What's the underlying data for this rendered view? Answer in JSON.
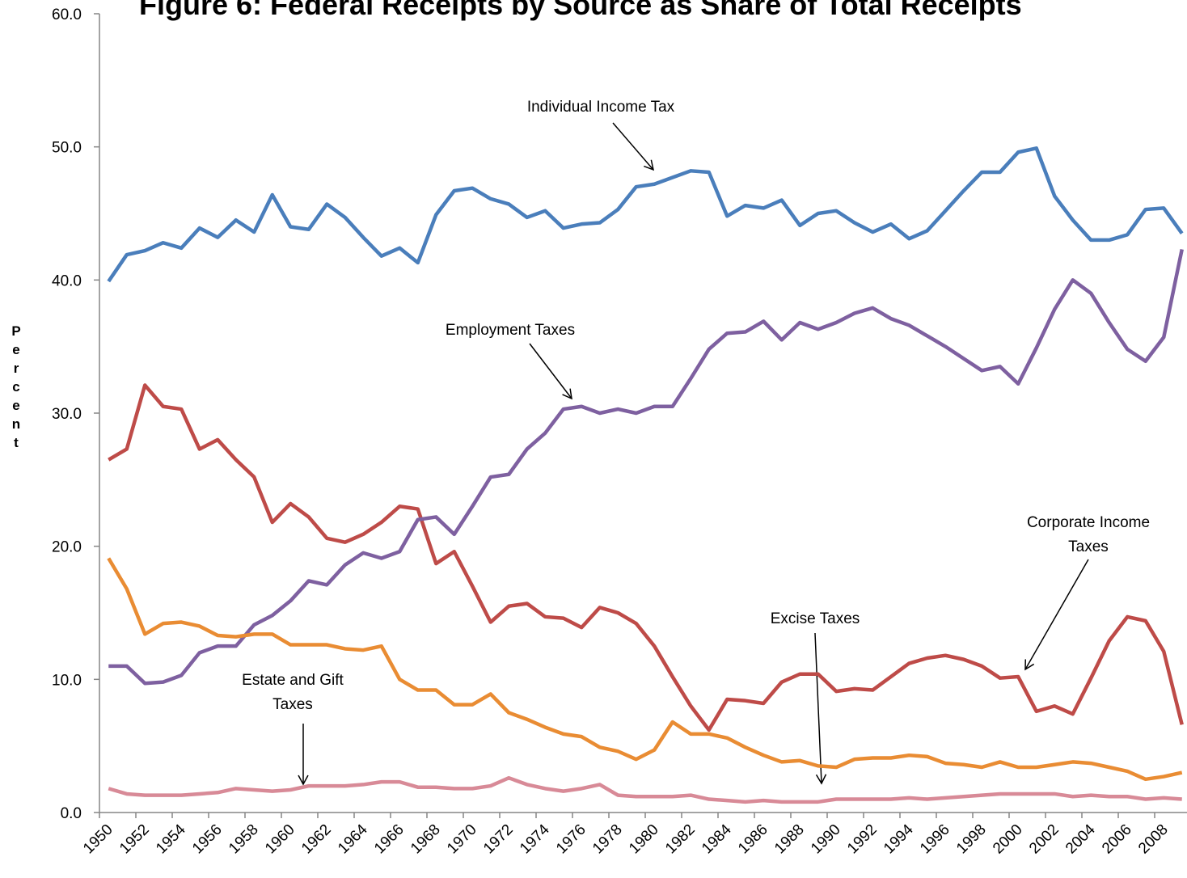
{
  "chart_data": {
    "type": "line",
    "title": "Figure 6:  Federal Receipts by Source as Share of Total Receipts",
    "y_label": "Percent",
    "x": [
      1950,
      1951,
      1952,
      1953,
      1954,
      1955,
      1956,
      1957,
      1958,
      1959,
      1960,
      1961,
      1962,
      1963,
      1964,
      1965,
      1966,
      1967,
      1968,
      1969,
      1970,
      1971,
      1972,
      1973,
      1974,
      1975,
      1976,
      1977,
      1978,
      1979,
      1980,
      1981,
      1982,
      1983,
      1984,
      1985,
      1986,
      1987,
      1988,
      1989,
      1990,
      1991,
      1992,
      1993,
      1994,
      1995,
      1996,
      1997,
      1998,
      1999,
      2000,
      2001,
      2002,
      2003,
      2004,
      2005,
      2006,
      2007,
      2008,
      2009
    ],
    "xlim": [
      1949.5,
      2009.5
    ],
    "xticks": [
      1950,
      1952,
      1954,
      1956,
      1958,
      1960,
      1962,
      1964,
      1966,
      1968,
      1970,
      1972,
      1974,
      1976,
      1978,
      1980,
      1982,
      1984,
      1986,
      1988,
      1990,
      1992,
      1994,
      1996,
      1998,
      2000,
      2002,
      2004,
      2006,
      2008
    ],
    "ylim": [
      0,
      60
    ],
    "yticks": [
      {
        "value": 0,
        "label": "0.0"
      },
      {
        "value": 10,
        "label": "10.0"
      },
      {
        "value": 20,
        "label": "20.0"
      },
      {
        "value": 30,
        "label": "30.0"
      },
      {
        "value": 40,
        "label": "40.0"
      },
      {
        "value": 50,
        "label": "50.0"
      },
      {
        "value": 60,
        "label": "60.0"
      }
    ],
    "grid": false,
    "series": [
      {
        "color": "#4a7ebb",
        "values": [
          39.9,
          41.9,
          42.2,
          42.8,
          42.4,
          43.9,
          43.2,
          44.5,
          43.6,
          46.4,
          44.0,
          43.8,
          45.7,
          44.7,
          43.2,
          41.8,
          42.4,
          41.3,
          44.9,
          46.7,
          46.9,
          46.1,
          45.7,
          44.7,
          45.2,
          43.9,
          44.2,
          44.3,
          45.3,
          47.0,
          47.2,
          47.7,
          48.2,
          48.1,
          44.8,
          45.6,
          45.4,
          46.0,
          44.1,
          45.0,
          45.2,
          44.3,
          43.6,
          44.2,
          43.1,
          43.7,
          45.2,
          46.7,
          48.1,
          48.1,
          49.6,
          49.9,
          46.3,
          44.5,
          43.0,
          43.0,
          43.4,
          45.3,
          45.4,
          43.5
        ]
      },
      {
        "color": "#be4b48",
        "values": [
          26.5,
          27.3,
          32.1,
          30.5,
          30.3,
          27.3,
          28.0,
          26.5,
          25.2,
          21.8,
          23.2,
          22.2,
          20.6,
          20.3,
          20.9,
          21.8,
          23.0,
          22.8,
          18.7,
          19.6,
          17.0,
          14.3,
          15.5,
          15.7,
          14.7,
          14.6,
          13.9,
          15.4,
          15.0,
          14.2,
          12.5,
          10.2,
          8.0,
          6.2,
          8.5,
          8.4,
          8.2,
          9.8,
          10.4,
          10.4,
          9.1,
          9.3,
          9.2,
          10.2,
          11.2,
          11.6,
          11.8,
          11.5,
          11.0,
          10.1,
          10.2,
          7.6,
          8.0,
          7.4,
          10.1,
          12.9,
          14.7,
          14.4,
          12.1,
          6.6
        ]
      },
      {
        "color": "#7e60a0",
        "values": [
          11.0,
          11.0,
          9.7,
          9.8,
          10.3,
          12.0,
          12.5,
          12.5,
          14.1,
          14.8,
          15.9,
          17.4,
          17.1,
          18.6,
          19.5,
          19.1,
          19.6,
          22.0,
          22.2,
          20.9,
          23.0,
          25.2,
          25.4,
          27.3,
          28.5,
          30.3,
          30.5,
          30.0,
          30.3,
          30.0,
          30.5,
          30.5,
          32.6,
          34.8,
          36.0,
          36.1,
          36.9,
          35.5,
          36.8,
          36.3,
          36.8,
          37.5,
          37.9,
          37.1,
          36.6,
          35.8,
          35.0,
          34.1,
          33.2,
          33.5,
          32.2,
          34.9,
          37.8,
          40.0,
          39.0,
          36.8,
          34.8,
          33.9,
          35.7,
          42.3
        ]
      },
      {
        "color": "#e98c33",
        "values": [
          19.1,
          16.8,
          13.4,
          14.2,
          14.3,
          14.0,
          13.3,
          13.2,
          13.4,
          13.4,
          12.6,
          12.6,
          12.6,
          12.3,
          12.2,
          12.5,
          10.0,
          9.2,
          9.2,
          8.1,
          8.1,
          8.9,
          7.5,
          7.0,
          6.4,
          5.9,
          5.7,
          4.9,
          4.6,
          4.0,
          4.7,
          6.8,
          5.9,
          5.9,
          5.6,
          4.9,
          4.3,
          3.8,
          3.9,
          3.5,
          3.4,
          4.0,
          4.1,
          4.1,
          4.3,
          4.2,
          3.7,
          3.6,
          3.4,
          3.8,
          3.4,
          3.4,
          3.6,
          3.8,
          3.7,
          3.4,
          3.1,
          2.5,
          2.7,
          3.0
        ]
      },
      {
        "color": "#d88a97",
        "values": [
          1.8,
          1.4,
          1.3,
          1.3,
          1.3,
          1.4,
          1.5,
          1.8,
          1.7,
          1.6,
          1.7,
          2.0,
          2.0,
          2.0,
          2.1,
          2.3,
          2.3,
          1.9,
          1.9,
          1.8,
          1.8,
          2.0,
          2.6,
          2.1,
          1.8,
          1.6,
          1.8,
          2.1,
          1.3,
          1.2,
          1.2,
          1.2,
          1.3,
          1.0,
          0.9,
          0.8,
          0.9,
          0.8,
          0.8,
          0.8,
          1.0,
          1.0,
          1.0,
          1.0,
          1.1,
          1.0,
          1.1,
          1.2,
          1.3,
          1.4,
          1.4,
          1.4,
          1.4,
          1.2,
          1.3,
          1.2,
          1.2,
          1.0,
          1.1,
          1.0
        ]
      }
    ],
    "annotations": [
      [
        "Individual Income Tax"
      ],
      [
        "Employment Taxes"
      ],
      [
        "Corporate Income",
        "Taxes"
      ],
      [
        "Excise Taxes"
      ],
      [
        "Estate and Gift",
        "Taxes"
      ]
    ]
  }
}
